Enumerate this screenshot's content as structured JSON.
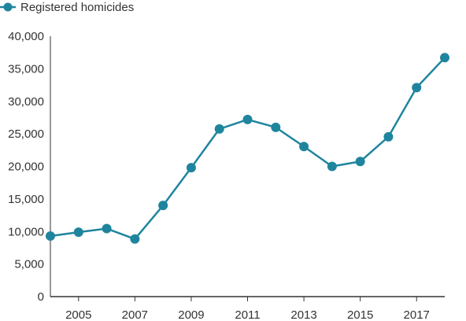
{
  "chart_data": {
    "type": "line",
    "x": [
      2004,
      2005,
      2006,
      2007,
      2008,
      2009,
      2010,
      2011,
      2012,
      2013,
      2014,
      2015,
      2016,
      2017,
      2018
    ],
    "series": [
      {
        "name": "Registered homicides",
        "values": [
          9300,
          9900,
          10450,
          8850,
          14000,
          19800,
          25750,
          27200,
          26000,
          23050,
          20000,
          20750,
          24550,
          32100,
          36700
        ]
      }
    ],
    "x_tick_labels": [
      "2005",
      "2007",
      "2009",
      "2011",
      "2013",
      "2015",
      "2017"
    ],
    "y_ticks": [
      0,
      5000,
      10000,
      15000,
      20000,
      25000,
      30000,
      35000,
      40000
    ],
    "y_tick_labels": [
      "0",
      "5,000",
      "10,000",
      "15,000",
      "20,000",
      "25,000",
      "30,000",
      "35,000",
      "40,000"
    ],
    "ylim": [
      0,
      40000
    ],
    "xlim": [
      2004,
      2018
    ],
    "title": "",
    "xlabel": "",
    "ylabel": "",
    "grid": false,
    "legend_position": "top-left",
    "series_color": "#1f859e",
    "axis_color": "#333333"
  }
}
